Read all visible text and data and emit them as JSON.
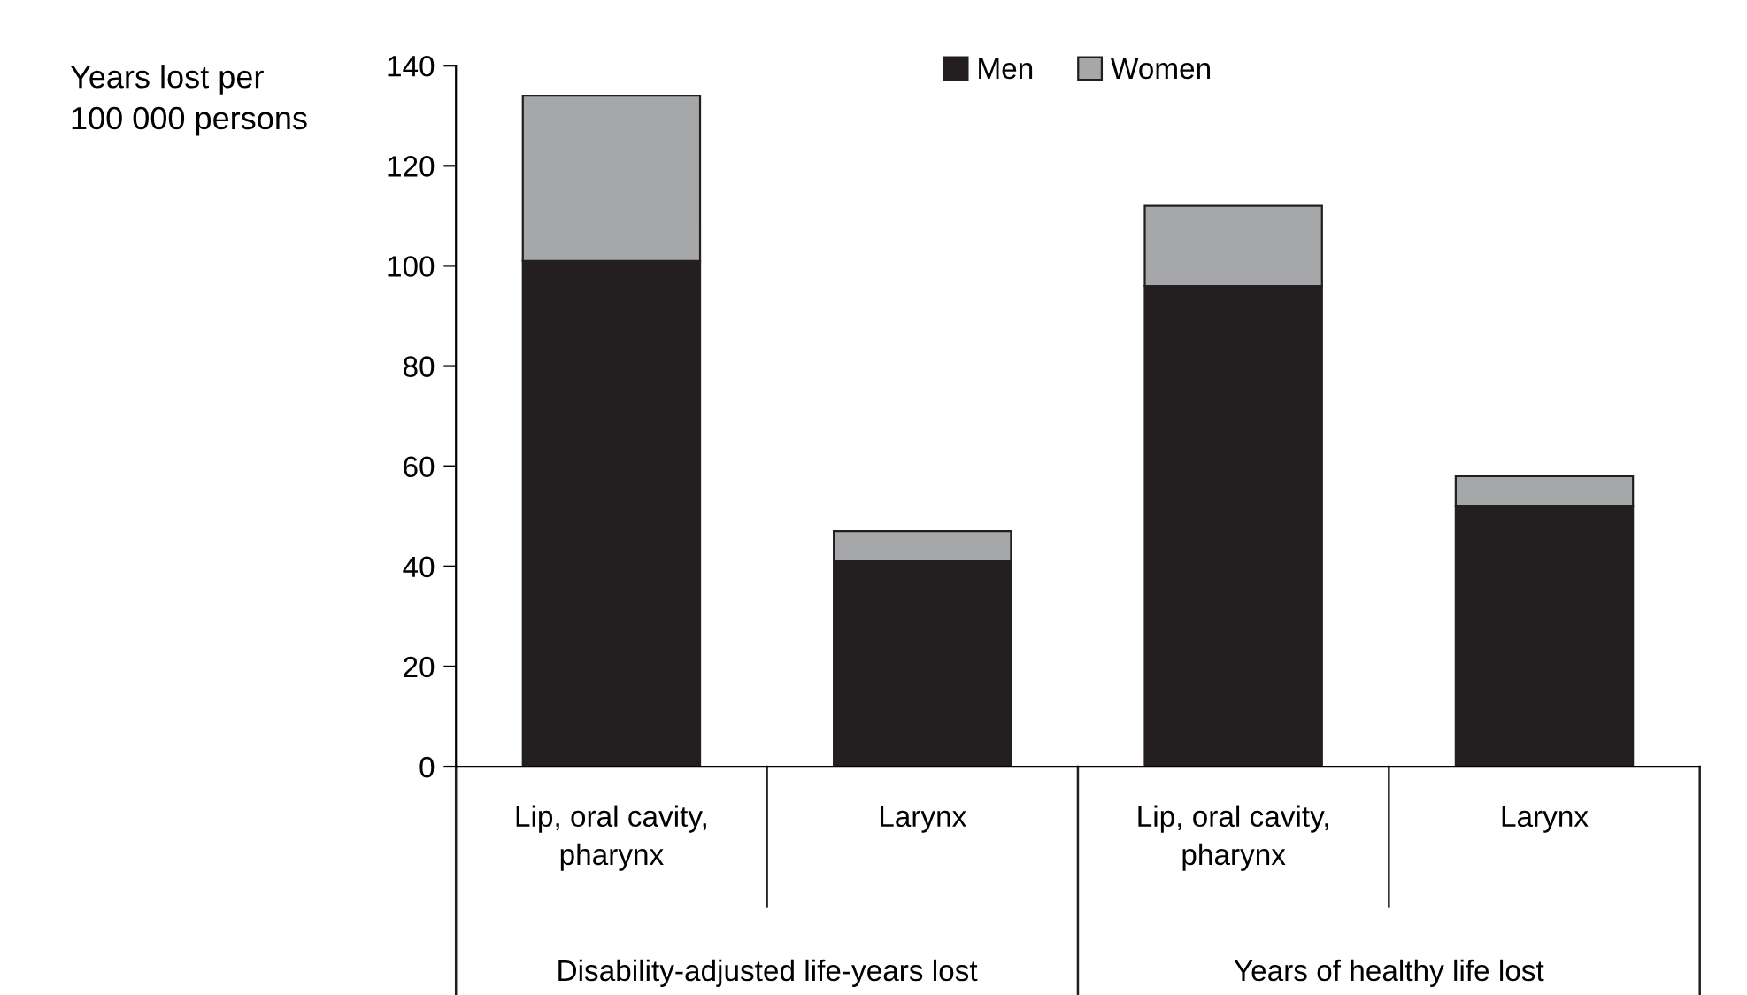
{
  "chart_data": {
    "type": "bar",
    "stacked": true,
    "ylabel": "Years lost per\n100 000 persons",
    "categories": [
      "Lip, oral cavity,\npharynx",
      "Larynx",
      "Lip, oral cavity,\npharynx",
      "Larynx"
    ],
    "annotations": [
      "Disability-adjusted life-years lost",
      "Years of healthy life lost"
    ],
    "series": [
      {
        "name": "Men",
        "color": "#231f20",
        "values": [
          101,
          41,
          96,
          52
        ]
      },
      {
        "name": "Women",
        "color": "#a6a7a9",
        "values": [
          33,
          6,
          16,
          6
        ]
      }
    ],
    "ylim": [
      0,
      140
    ],
    "yticks": [
      0,
      20,
      40,
      60,
      80,
      100,
      120,
      140
    ],
    "grid": false,
    "legend": "top"
  }
}
